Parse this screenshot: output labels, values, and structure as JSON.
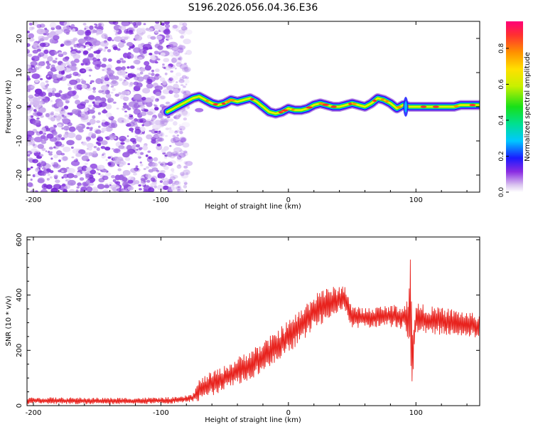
{
  "title": "S196.2026.056.04.36.E36",
  "chart_data": [
    {
      "type": "heatmap",
      "title": "S196.2026.056.04.36.E36",
      "xlabel": "Height of straight line (km)",
      "ylabel": "Frequency (Hz)",
      "xlim": [
        -205,
        150
      ],
      "ylim": [
        -25,
        25
      ],
      "x_ticks": [
        -200,
        -100,
        0,
        100
      ],
      "x_tick_labels": [
        "-200",
        "-100",
        "0",
        "100"
      ],
      "y_ticks": [
        -20,
        -10,
        0,
        10,
        20
      ],
      "y_tick_labels": [
        "-20",
        "-10",
        "0",
        "10",
        "20"
      ],
      "noise_region_km": [
        -205,
        -80
      ],
      "signal_track": {
        "x": [
          -95,
          -90,
          -85,
          -80,
          -75,
          -70,
          -65,
          -60,
          -55,
          -50,
          -45,
          -40,
          -35,
          -30,
          -25,
          -20,
          -15,
          -10,
          -5,
          0,
          5,
          10,
          15,
          20,
          25,
          30,
          35,
          40,
          45,
          50,
          55,
          60,
          65,
          70,
          75,
          80,
          85,
          90,
          95,
          100,
          105,
          110,
          115,
          120,
          125,
          130,
          135,
          140,
          145,
          150
        ],
        "y": [
          -1.5,
          -0.5,
          0.5,
          1.5,
          2.5,
          3,
          2,
          1,
          0.5,
          1,
          2,
          1.5,
          2,
          2.5,
          1.5,
          0,
          -1.5,
          -2,
          -1.5,
          -0.5,
          -1,
          -1,
          -0.5,
          0.5,
          1,
          0.5,
          0,
          0,
          0.5,
          1,
          0.5,
          0,
          1,
          2.5,
          2,
          1,
          -0.5,
          0.5,
          0,
          0,
          0,
          0,
          0,
          0,
          0,
          0,
          0.5,
          0.5,
          0.5,
          0.5
        ]
      },
      "colorbar": {
        "label": "Normalized spectral amplitude",
        "range": [
          0,
          0.95
        ],
        "ticks": [
          0.0,
          0.2,
          0.4,
          0.6,
          0.8
        ],
        "tick_labels": [
          "0.0",
          "0.2",
          "0.4",
          "0.6",
          "0.8"
        ]
      }
    },
    {
      "type": "line",
      "title": "",
      "xlabel": "Height of straight line (km)",
      "ylabel": "SNR (10 * v/v)",
      "xlim": [
        -205,
        150
      ],
      "ylim": [
        0,
        610
      ],
      "x_ticks": [
        -200,
        -100,
        0,
        100
      ],
      "x_tick_labels": [
        "-200",
        "-100",
        "0",
        "100"
      ],
      "y_ticks": [
        0,
        200,
        400,
        600
      ],
      "y_tick_labels": [
        "0",
        "200",
        "400",
        "600"
      ],
      "series": [
        {
          "name": "SNR",
          "color": "#e8231e",
          "envelope_x": [
            -205,
            -180,
            -150,
            -120,
            -100,
            -85,
            -75,
            -70,
            -65,
            -60,
            -50,
            -40,
            -30,
            -20,
            -10,
            0,
            10,
            20,
            25,
            30,
            35,
            40,
            45,
            50,
            60,
            70,
            80,
            90,
            92,
            95,
            96,
            97,
            98,
            100,
            110,
            120,
            130,
            140,
            150
          ],
          "envelope_center": [
            18,
            18,
            17,
            17,
            18,
            20,
            28,
            55,
            70,
            80,
            100,
            125,
            150,
            175,
            210,
            250,
            290,
            340,
            360,
            365,
            375,
            385,
            385,
            320,
            315,
            320,
            325,
            320,
            315,
            320,
            330,
            150,
            220,
            315,
            310,
            305,
            300,
            295,
            285
          ],
          "envelope_half_width": [
            12,
            12,
            12,
            12,
            12,
            12,
            15,
            40,
            40,
            45,
            45,
            50,
            55,
            55,
            60,
            60,
            60,
            65,
            70,
            60,
            55,
            50,
            50,
            40,
            40,
            40,
            40,
            45,
            60,
            130,
            280,
            90,
            100,
            60,
            50,
            50,
            50,
            45,
            45
          ]
        }
      ]
    }
  ]
}
